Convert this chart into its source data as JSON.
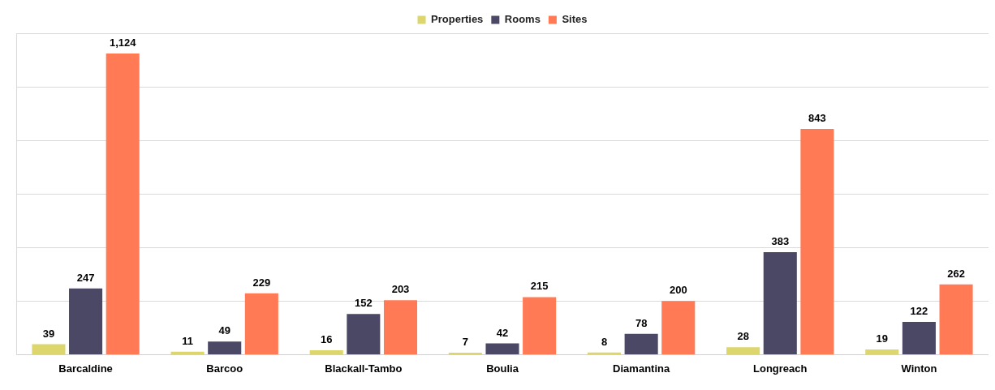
{
  "chart_data": {
    "type": "bar",
    "categories": [
      "Barcaldine",
      "Barcoo",
      "Blackall-Tambo",
      "Boulia",
      "Diamantina",
      "Longreach",
      "Winton"
    ],
    "series": [
      {
        "name": "Properties",
        "color": "#dcd66c",
        "values": [
          39,
          11,
          16,
          7,
          8,
          28,
          19
        ],
        "value_labels": [
          "39",
          "11",
          "16",
          "7",
          "8",
          "28",
          "19"
        ]
      },
      {
        "name": "Rooms",
        "color": "#4a4865",
        "values": [
          247,
          49,
          152,
          42,
          78,
          383,
          122
        ],
        "value_labels": [
          "247",
          "49",
          "152",
          "42",
          "78",
          "383",
          "122"
        ]
      },
      {
        "name": "Sites",
        "color": "#ff7a55",
        "values": [
          1124,
          229,
          203,
          215,
          200,
          843,
          262
        ],
        "value_labels": [
          "1,124",
          "229",
          "203",
          "215",
          "200",
          "843",
          "262"
        ]
      }
    ],
    "ylim": [
      0,
      1200
    ],
    "yticks": [
      {
        "value": 0,
        "label": null
      },
      {
        "value": 200,
        "label": null
      },
      {
        "value": 400,
        "label": null
      },
      {
        "value": 600,
        "label": null
      },
      {
        "value": 800,
        "label": null
      },
      {
        "value": 1000,
        "label": null
      },
      {
        "value": 1200,
        "label": null
      }
    ],
    "tick_labels": "x",
    "grid": "y",
    "legend": "top"
  }
}
